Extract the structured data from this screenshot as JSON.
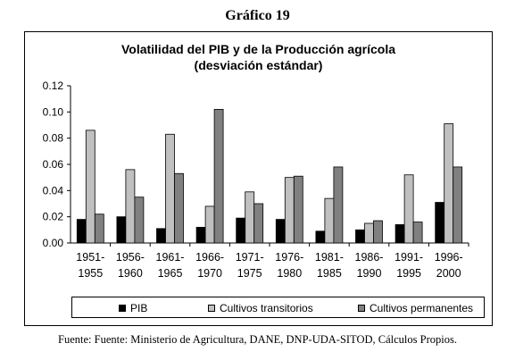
{
  "heading": "Gráfico 19",
  "source": "Fuente: Fuente: Ministerio de Agricultura, DANE, DNP-UDA-SITOD, Cálculos Propios.",
  "colors": {
    "pib": "#000000",
    "transitorios": "#c0c0c0",
    "permanentes": "#808080"
  },
  "chart_data": {
    "type": "bar",
    "title_line1": "Volatilidad del PIB y de la Producción agrícola",
    "title_line2": "(desviación estándar)",
    "categories": [
      [
        "1951-",
        "1955"
      ],
      [
        "1956-",
        "1960"
      ],
      [
        "1961-",
        "1965"
      ],
      [
        "1966-",
        "1970"
      ],
      [
        "1971-",
        "1975"
      ],
      [
        "1976-",
        "1980"
      ],
      [
        "1981-",
        "1985"
      ],
      [
        "1986-",
        "1990"
      ],
      [
        "1991-",
        "1995"
      ],
      [
        "1996-",
        "2000"
      ]
    ],
    "series": [
      {
        "name": "PIB",
        "values": [
          0.018,
          0.02,
          0.011,
          0.012,
          0.019,
          0.018,
          0.009,
          0.01,
          0.014,
          0.031
        ]
      },
      {
        "name": "Cultivos transitorios",
        "values": [
          0.086,
          0.056,
          0.083,
          0.028,
          0.039,
          0.05,
          0.034,
          0.015,
          0.052,
          0.091
        ]
      },
      {
        "name": "Cultivos permanentes",
        "values": [
          0.022,
          0.035,
          0.053,
          0.102,
          0.03,
          0.051,
          0.058,
          0.017,
          0.016,
          0.058
        ]
      }
    ],
    "yticks": [
      "0.00",
      "0.02",
      "0.04",
      "0.06",
      "0.08",
      "0.10",
      "0.12"
    ],
    "ylim": [
      0,
      0.12
    ],
    "legend": "bottom",
    "grid": false
  }
}
